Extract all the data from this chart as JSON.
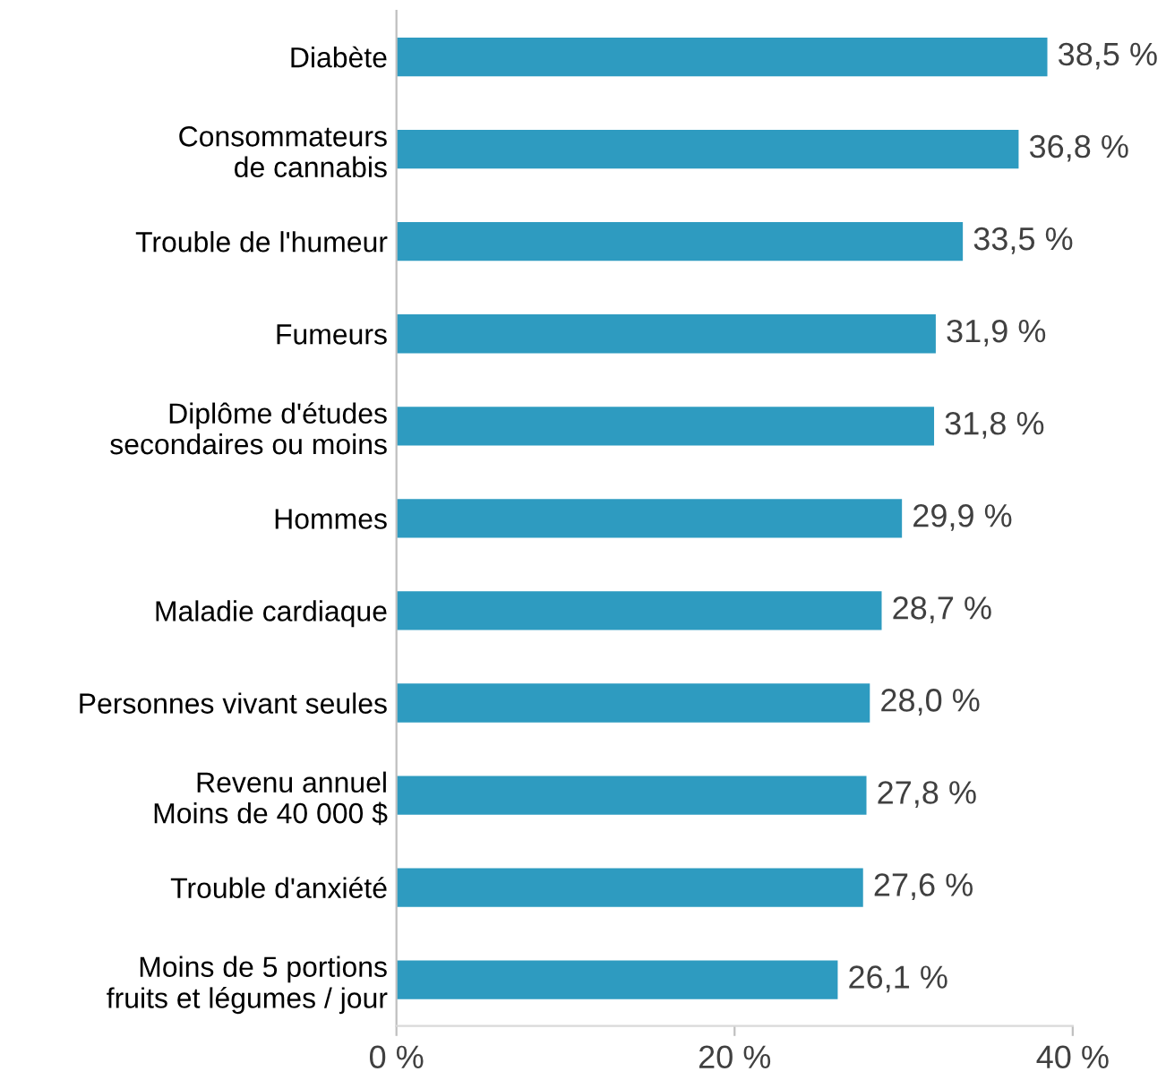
{
  "chart_data": {
    "type": "bar",
    "orientation": "horizontal",
    "categories": [
      "Diabète",
      "Consommateurs\nde cannabis",
      "Trouble de l'humeur",
      "Fumeurs",
      "Diplôme d'études\nsecondaires ou moins",
      "Hommes",
      "Maladie cardiaque",
      "Personnes vivant seules",
      "Revenu annuel\nMoins de 40 000 $",
      "Trouble d'anxiété",
      "Moins de 5 portions\nfruits et légumes / jour"
    ],
    "values": [
      38.5,
      36.8,
      33.5,
      31.9,
      31.8,
      29.9,
      28.7,
      28.0,
      27.8,
      27.6,
      26.1
    ],
    "value_labels": [
      "38,5 %",
      "36,8 %",
      "33,5 %",
      "31,9 %",
      "31,8 %",
      "29,9 %",
      "28,7 %",
      "28,0 %",
      "27,8 %",
      "27,6 %",
      "26,1 %"
    ],
    "color": "#2e9bc0",
    "xlim": [
      0,
      40
    ],
    "xticks": [
      {
        "value": 0,
        "label": "0 %"
      },
      {
        "value": 20,
        "label": "20 %"
      },
      {
        "value": 40,
        "label": "40 %"
      }
    ],
    "grid": false,
    "legend": false
  }
}
